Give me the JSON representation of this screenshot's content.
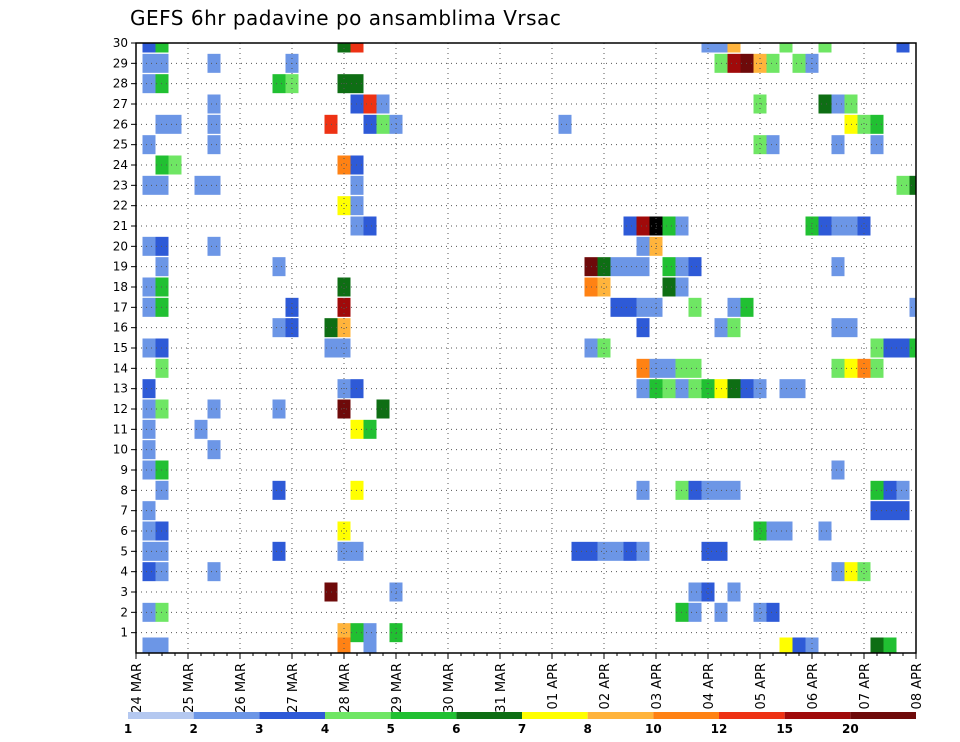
{
  "chart_data": {
    "type": "heatmap",
    "title": "GEFS 6hr padavine po ansamblima Vrsac",
    "xlabel": "",
    "ylabel": "",
    "x_ticks": [
      "24 MAR",
      "25 MAR",
      "26 MAR",
      "27 MAR",
      "28 MAR",
      "29 MAR",
      "30 MAR",
      "31 MAR",
      "01 APR",
      "02 APR",
      "03 APR",
      "04 APR",
      "05 APR",
      "06 APR",
      "07 APR",
      "08 APR"
    ],
    "xlim": [
      0,
      60
    ],
    "y_ticks": [
      1,
      2,
      3,
      4,
      5,
      6,
      7,
      8,
      9,
      10,
      11,
      12,
      13,
      14,
      15,
      16,
      17,
      18,
      19,
      20,
      21,
      22,
      23,
      24,
      25,
      26,
      27,
      28,
      29,
      30
    ],
    "ylim": [
      0,
      30
    ],
    "grid": true,
    "time_step": "6hr",
    "color_scale": {
      "levels": [
        1,
        2,
        3,
        4,
        5,
        6,
        7,
        8,
        10,
        12,
        15,
        20
      ],
      "colors": [
        "#b4c8f0",
        "#6c96e6",
        "#2e5ad7",
        "#6fe664",
        "#21c032",
        "#0e6e14",
        "#ffff00",
        "#ffb43c",
        "#ff8214",
        "#ee3214",
        "#a00a0a",
        "#6e0a0a"
      ]
    },
    "cells": [
      [
        1,
        30,
        2
      ],
      [
        2,
        30,
        4
      ],
      [
        16,
        30,
        5
      ],
      [
        17,
        30,
        9
      ],
      [
        44,
        30,
        1
      ],
      [
        45,
        30,
        1
      ],
      [
        46,
        30,
        7
      ],
      [
        50,
        30,
        3
      ],
      [
        53,
        30,
        3
      ],
      [
        59,
        30,
        2
      ],
      [
        1,
        29,
        1
      ],
      [
        2,
        29,
        1
      ],
      [
        6,
        29,
        1
      ],
      [
        12,
        29,
        1
      ],
      [
        45,
        29,
        3
      ],
      [
        46,
        29,
        10
      ],
      [
        47,
        29,
        11
      ],
      [
        48,
        29,
        7
      ],
      [
        49,
        29,
        3
      ],
      [
        51,
        29,
        3
      ],
      [
        52,
        29,
        1
      ],
      [
        1,
        28,
        1
      ],
      [
        2,
        28,
        4
      ],
      [
        11,
        28,
        4
      ],
      [
        12,
        28,
        3
      ],
      [
        16,
        28,
        5
      ],
      [
        17,
        28,
        5
      ],
      [
        6,
        27,
        1
      ],
      [
        17,
        27,
        2
      ],
      [
        18,
        27,
        9
      ],
      [
        19,
        27,
        1
      ],
      [
        48,
        27,
        3
      ],
      [
        53,
        27,
        5
      ],
      [
        54,
        27,
        1
      ],
      [
        55,
        27,
        3
      ],
      [
        2,
        26,
        1
      ],
      [
        3,
        26,
        1
      ],
      [
        6,
        26,
        1
      ],
      [
        15,
        26,
        9
      ],
      [
        18,
        26,
        2
      ],
      [
        19,
        26,
        3
      ],
      [
        20,
        26,
        1
      ],
      [
        33,
        26,
        1
      ],
      [
        55,
        26,
        6
      ],
      [
        56,
        26,
        3
      ],
      [
        57,
        26,
        4
      ],
      [
        1,
        25,
        1
      ],
      [
        6,
        25,
        1
      ],
      [
        48,
        25,
        3
      ],
      [
        49,
        25,
        1
      ],
      [
        54,
        25,
        1
      ],
      [
        57,
        25,
        1
      ],
      [
        2,
        24,
        4
      ],
      [
        3,
        24,
        3
      ],
      [
        16,
        24,
        8
      ],
      [
        17,
        24,
        2
      ],
      [
        1,
        23,
        1
      ],
      [
        2,
        23,
        1
      ],
      [
        5,
        23,
        1
      ],
      [
        6,
        23,
        1
      ],
      [
        17,
        23,
        1
      ],
      [
        59,
        23,
        3
      ],
      [
        60,
        23,
        5
      ],
      [
        17,
        22,
        1
      ],
      [
        16,
        22,
        6
      ],
      [
        17,
        21,
        1
      ],
      [
        18,
        21,
        2
      ],
      [
        38,
        21,
        2
      ],
      [
        39,
        21,
        10
      ],
      [
        40,
        21,
        12
      ],
      [
        41,
        21,
        4
      ],
      [
        42,
        21,
        1
      ],
      [
        52,
        21,
        4
      ],
      [
        53,
        21,
        2
      ],
      [
        54,
        21,
        1
      ],
      [
        55,
        21,
        1
      ],
      [
        56,
        21,
        2
      ],
      [
        1,
        20,
        1
      ],
      [
        2,
        20,
        2
      ],
      [
        6,
        20,
        1
      ],
      [
        39,
        20,
        1
      ],
      [
        40,
        20,
        7
      ],
      [
        2,
        19,
        1
      ],
      [
        11,
        19,
        1
      ],
      [
        35,
        19,
        11
      ],
      [
        36,
        19,
        5
      ],
      [
        37,
        19,
        1
      ],
      [
        38,
        19,
        1
      ],
      [
        39,
        19,
        1
      ],
      [
        41,
        19,
        4
      ],
      [
        42,
        19,
        1
      ],
      [
        43,
        19,
        2
      ],
      [
        54,
        19,
        1
      ],
      [
        1,
        18,
        1
      ],
      [
        2,
        18,
        4
      ],
      [
        16,
        18,
        5
      ],
      [
        35,
        18,
        8
      ],
      [
        36,
        18,
        7
      ],
      [
        41,
        18,
        5
      ],
      [
        42,
        18,
        1
      ],
      [
        1,
        17,
        1
      ],
      [
        2,
        17,
        4
      ],
      [
        12,
        17,
        2
      ],
      [
        16,
        17,
        10
      ],
      [
        37,
        17,
        2
      ],
      [
        38,
        17,
        2
      ],
      [
        39,
        17,
        1
      ],
      [
        40,
        17,
        1
      ],
      [
        43,
        17,
        3
      ],
      [
        46,
        17,
        1
      ],
      [
        47,
        17,
        4
      ],
      [
        60,
        17,
        1
      ],
      [
        11,
        16,
        1
      ],
      [
        12,
        16,
        2
      ],
      [
        15,
        16,
        5
      ],
      [
        16,
        16,
        7
      ],
      [
        39,
        16,
        2
      ],
      [
        45,
        16,
        1
      ],
      [
        46,
        16,
        3
      ],
      [
        54,
        16,
        1
      ],
      [
        55,
        16,
        1
      ],
      [
        1,
        15,
        1
      ],
      [
        2,
        15,
        2
      ],
      [
        15,
        15,
        1
      ],
      [
        16,
        15,
        1
      ],
      [
        35,
        15,
        1
      ],
      [
        36,
        15,
        3
      ],
      [
        57,
        15,
        3
      ],
      [
        58,
        15,
        2
      ],
      [
        59,
        15,
        2
      ],
      [
        60,
        15,
        4
      ],
      [
        2,
        14,
        3
      ],
      [
        39,
        14,
        8
      ],
      [
        40,
        14,
        1
      ],
      [
        41,
        14,
        1
      ],
      [
        42,
        14,
        3
      ],
      [
        43,
        14,
        3
      ],
      [
        54,
        14,
        3
      ],
      [
        55,
        14,
        6
      ],
      [
        56,
        14,
        8
      ],
      [
        57,
        14,
        3
      ],
      [
        1,
        13,
        2
      ],
      [
        16,
        13,
        1
      ],
      [
        17,
        13,
        2
      ],
      [
        39,
        13,
        1
      ],
      [
        40,
        13,
        4
      ],
      [
        41,
        13,
        3
      ],
      [
        42,
        13,
        1
      ],
      [
        43,
        13,
        3
      ],
      [
        44,
        13,
        4
      ],
      [
        45,
        13,
        6
      ],
      [
        46,
        13,
        5
      ],
      [
        47,
        13,
        2
      ],
      [
        48,
        13,
        1
      ],
      [
        50,
        13,
        1
      ],
      [
        51,
        13,
        1
      ],
      [
        1,
        12,
        1
      ],
      [
        2,
        12,
        3
      ],
      [
        6,
        12,
        1
      ],
      [
        11,
        12,
        1
      ],
      [
        16,
        12,
        11
      ],
      [
        19,
        12,
        5
      ],
      [
        1,
        11,
        1
      ],
      [
        5,
        11,
        1
      ],
      [
        17,
        11,
        6
      ],
      [
        18,
        11,
        4
      ],
      [
        1,
        10,
        1
      ],
      [
        6,
        10,
        1
      ],
      [
        1,
        9,
        1
      ],
      [
        2,
        9,
        4
      ],
      [
        54,
        9,
        1
      ],
      [
        2,
        8,
        1
      ],
      [
        11,
        8,
        2
      ],
      [
        17,
        8,
        6
      ],
      [
        39,
        8,
        1
      ],
      [
        42,
        8,
        3
      ],
      [
        43,
        8,
        2
      ],
      [
        44,
        8,
        1
      ],
      [
        45,
        8,
        1
      ],
      [
        46,
        8,
        1
      ],
      [
        57,
        8,
        4
      ],
      [
        58,
        8,
        2
      ],
      [
        59,
        8,
        1
      ],
      [
        1,
        7,
        1
      ],
      [
        57,
        7,
        2
      ],
      [
        58,
        7,
        2
      ],
      [
        59,
        7,
        2
      ],
      [
        1,
        6,
        1
      ],
      [
        2,
        6,
        2
      ],
      [
        16,
        6,
        6
      ],
      [
        48,
        6,
        4
      ],
      [
        49,
        6,
        1
      ],
      [
        50,
        6,
        1
      ],
      [
        53,
        6,
        1
      ],
      [
        1,
        5,
        1
      ],
      [
        2,
        5,
        1
      ],
      [
        11,
        5,
        2
      ],
      [
        16,
        5,
        1
      ],
      [
        17,
        5,
        1
      ],
      [
        34,
        5,
        2
      ],
      [
        35,
        5,
        2
      ],
      [
        36,
        5,
        1
      ],
      [
        37,
        5,
        1
      ],
      [
        38,
        5,
        2
      ],
      [
        39,
        5,
        1
      ],
      [
        44,
        5,
        2
      ],
      [
        45,
        5,
        2
      ],
      [
        1,
        4,
        2
      ],
      [
        2,
        4,
        1
      ],
      [
        6,
        4,
        1
      ],
      [
        54,
        4,
        1
      ],
      [
        55,
        4,
        6
      ],
      [
        56,
        4,
        3
      ],
      [
        15,
        3,
        11
      ],
      [
        20,
        3,
        1
      ],
      [
        43,
        3,
        1
      ],
      [
        44,
        3,
        2
      ],
      [
        46,
        3,
        1
      ],
      [
        1,
        2,
        1
      ],
      [
        2,
        2,
        3
      ],
      [
        42,
        2,
        4
      ],
      [
        43,
        2,
        1
      ],
      [
        45,
        2,
        1
      ],
      [
        48,
        2,
        1
      ],
      [
        49,
        2,
        2
      ],
      [
        16,
        1,
        7
      ],
      [
        17,
        1,
        4
      ],
      [
        18,
        1,
        1
      ],
      [
        20,
        1,
        4
      ],
      [
        1,
        0,
        1
      ],
      [
        2,
        0,
        1
      ],
      [
        16,
        0,
        8
      ],
      [
        18,
        0,
        1
      ],
      [
        50,
        0,
        6
      ],
      [
        51,
        0,
        2
      ],
      [
        52,
        0,
        1
      ],
      [
        57,
        0,
        5
      ],
      [
        58,
        0,
        4
      ]
    ]
  },
  "legend": {
    "labels": [
      "1",
      "2",
      "3",
      "4",
      "5",
      "6",
      "7",
      "8",
      "10",
      "12",
      "15",
      "20"
    ]
  }
}
